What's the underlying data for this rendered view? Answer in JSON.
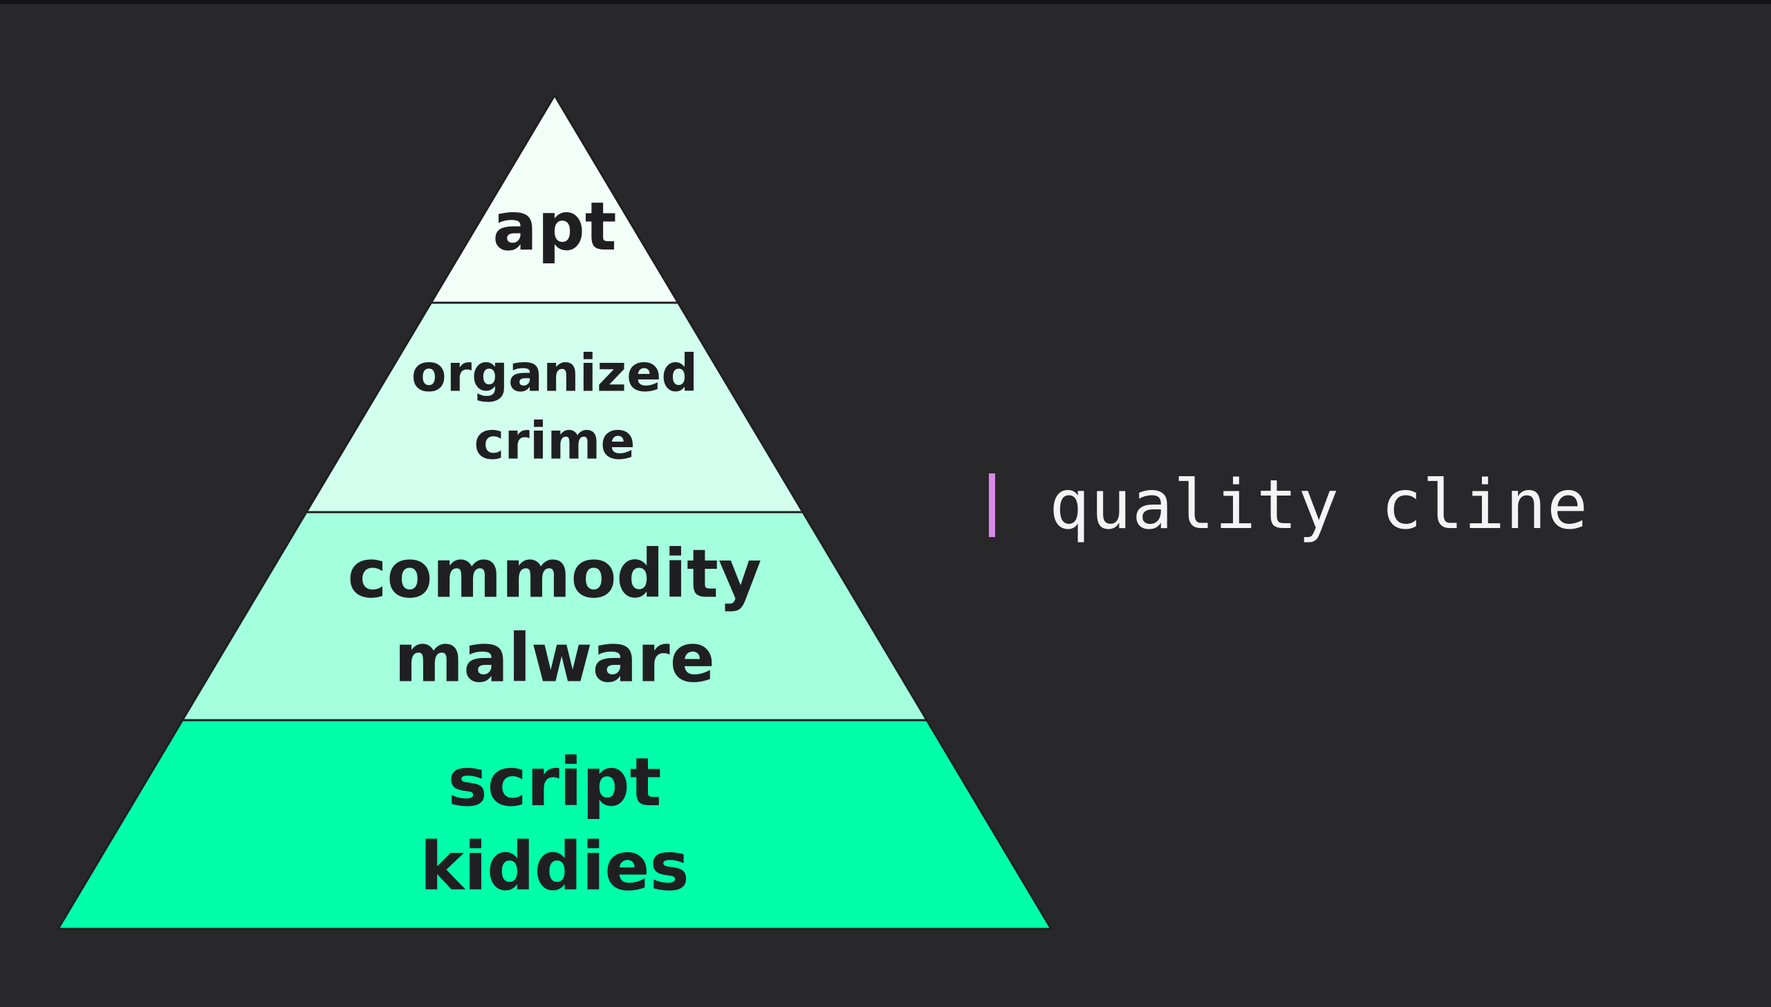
{
  "pyramid": {
    "tiers": [
      {
        "lines": [
          "apt"
        ],
        "color": "#f2fff8"
      },
      {
        "lines": [
          "organized",
          "crime"
        ],
        "color": "#d2ffee"
      },
      {
        "lines": [
          "commodity",
          "malware"
        ],
        "color": "#a3ffde"
      },
      {
        "lines": [
          "script",
          "kiddies"
        ],
        "color": "#00ffa8"
      }
    ],
    "outline_color": "#1f1f22"
  },
  "cline": {
    "label": "quality cline",
    "bar_color": "#d88ae6"
  }
}
